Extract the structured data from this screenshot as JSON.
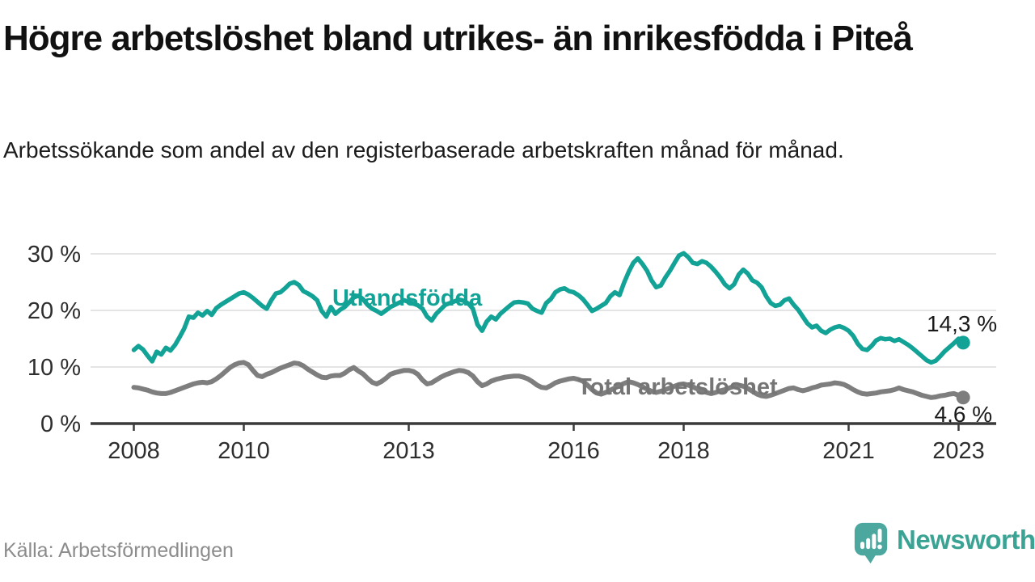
{
  "header": {
    "title": "Högre arbetslöshet bland utrikes- än inrikesfödda i Piteå",
    "subtitle": "Arbetssökande som andel av den registerbaserade arbetskraften månad för månad."
  },
  "footer": {
    "source": "Källa: Arbetsförmedlingen",
    "brand_name": "Newsworthy",
    "brand_icon": "speech-bubble-bar-chart-icon",
    "brand_icon_color": "#4ca89f",
    "brand_text_color": "#3ba394"
  },
  "colors": {
    "accent_teal": "#12a296",
    "line_gray": "#7e7e7e",
    "grid": "#dbdbdb",
    "axis": "#3a3a3a",
    "tick_text": "#2e2e2e",
    "value_label": "#1a1a1a"
  },
  "chart_data": {
    "type": "line",
    "title": "Högre arbetslöshet bland utrikes- än inrikesfödda i Piteå",
    "xlabel": "",
    "ylabel": "",
    "x_start_year": 2008,
    "x_step": "monthly",
    "xlim": [
      2007.3,
      2023.7
    ],
    "ylim": [
      0,
      32
    ],
    "grid": "horizontal",
    "legend_position": "inline-labels",
    "x_ticks": [
      {
        "label": "2008",
        "year": 2008
      },
      {
        "label": "2010",
        "year": 2010
      },
      {
        "label": "2013",
        "year": 2013
      },
      {
        "label": "2016",
        "year": 2016
      },
      {
        "label": "2018",
        "year": 2018
      },
      {
        "label": "2021",
        "year": 2021
      },
      {
        "label": "2023",
        "year": 2023
      }
    ],
    "y_ticks": [
      {
        "label": "0 %",
        "value": 0
      },
      {
        "label": "10 %",
        "value": 10
      },
      {
        "label": "20 %",
        "value": 20
      },
      {
        "label": "30 %",
        "value": 30
      }
    ],
    "series": [
      {
        "name": "Utlandsfödda",
        "color": "#12a296",
        "stroke_width": 5.5,
        "end_label": "14,3 %",
        "end_value": 14.3,
        "values": [
          13.0,
          13.7,
          13.1,
          12.0,
          11.0,
          12.7,
          12.2,
          13.4,
          12.9,
          13.9,
          15.3,
          16.8,
          18.9,
          18.7,
          19.6,
          19.1,
          19.9,
          19.2,
          20.4,
          21.0,
          21.5,
          22.0,
          22.5,
          23.0,
          23.2,
          22.8,
          22.2,
          21.5,
          20.8,
          20.3,
          21.8,
          23.0,
          23.2,
          23.9,
          24.7,
          25.0,
          24.5,
          23.4,
          23.0,
          22.5,
          21.8,
          19.9,
          18.9,
          20.6,
          19.4,
          20.1,
          20.6,
          21.4,
          22.3,
          22.6,
          22.0,
          21.0,
          20.3,
          19.9,
          19.4,
          20.0,
          20.6,
          21.0,
          21.4,
          21.8,
          21.5,
          21.2,
          20.9,
          20.3,
          18.9,
          18.2,
          19.4,
          20.2,
          21.0,
          21.3,
          21.6,
          21.9,
          21.7,
          21.2,
          20.3,
          17.5,
          16.4,
          18.0,
          18.9,
          18.4,
          19.4,
          20.1,
          20.8,
          21.4,
          21.5,
          21.4,
          21.2,
          20.3,
          19.9,
          19.6,
          21.3,
          22.0,
          23.2,
          23.7,
          23.9,
          23.4,
          23.2,
          22.7,
          22.0,
          21.0,
          19.9,
          20.3,
          20.8,
          21.3,
          22.5,
          23.2,
          22.7,
          24.9,
          26.8,
          28.4,
          29.2,
          28.2,
          27.0,
          25.3,
          24.1,
          24.4,
          25.8,
          27.0,
          28.4,
          29.7,
          30.1,
          29.4,
          28.4,
          28.2,
          28.7,
          28.4,
          27.7,
          26.8,
          25.8,
          24.6,
          23.9,
          24.6,
          26.3,
          27.2,
          26.5,
          25.3,
          24.9,
          24.1,
          22.5,
          21.3,
          20.8,
          21.0,
          21.8,
          22.1,
          21.0,
          20.1,
          18.9,
          17.7,
          17.0,
          17.3,
          16.4,
          16.0,
          16.6,
          17.0,
          17.2,
          16.9,
          16.4,
          15.5,
          14.1,
          13.2,
          13.0,
          13.7,
          14.7,
          15.1,
          14.9,
          15.0,
          14.6,
          14.9,
          14.4,
          13.9,
          13.3,
          12.6,
          11.9,
          11.2,
          10.8,
          11.1,
          11.9,
          12.8,
          13.5,
          14.2,
          15.0,
          14.3
        ]
      },
      {
        "name": "Total arbetslöshet",
        "color": "#7e7e7e",
        "stroke_width": 6,
        "end_label": "4,6 %",
        "end_value": 4.6,
        "values": [
          6.4,
          6.3,
          6.1,
          5.9,
          5.6,
          5.4,
          5.3,
          5.3,
          5.5,
          5.8,
          6.1,
          6.4,
          6.7,
          7.0,
          7.2,
          7.3,
          7.2,
          7.4,
          7.9,
          8.5,
          9.2,
          9.9,
          10.4,
          10.7,
          10.8,
          10.4,
          9.4,
          8.5,
          8.3,
          8.7,
          9.0,
          9.4,
          9.8,
          10.1,
          10.4,
          10.7,
          10.6,
          10.2,
          9.6,
          9.1,
          8.6,
          8.2,
          8.1,
          8.4,
          8.5,
          8.5,
          8.9,
          9.5,
          9.9,
          9.3,
          8.8,
          8.0,
          7.3,
          7.0,
          7.4,
          8.0,
          8.7,
          9.0,
          9.2,
          9.4,
          9.4,
          9.2,
          8.7,
          7.7,
          7.0,
          7.2,
          7.7,
          8.2,
          8.6,
          8.9,
          9.2,
          9.4,
          9.3,
          9.0,
          8.4,
          7.4,
          6.7,
          7.0,
          7.5,
          7.8,
          8.0,
          8.2,
          8.3,
          8.4,
          8.4,
          8.2,
          7.9,
          7.4,
          6.8,
          6.4,
          6.3,
          6.7,
          7.2,
          7.5,
          7.7,
          7.9,
          8.0,
          7.8,
          7.5,
          6.8,
          6.0,
          5.4,
          5.2,
          5.5,
          5.9,
          6.3,
          6.7,
          7.1,
          7.4,
          7.2,
          6.9,
          6.5,
          6.1,
          5.7,
          5.5,
          5.7,
          6.0,
          6.3,
          6.6,
          6.9,
          7.0,
          6.8,
          6.5,
          6.1,
          5.8,
          5.5,
          5.3,
          5.5,
          5.8,
          6.0,
          6.3,
          6.6,
          6.8,
          6.6,
          6.2,
          5.7,
          5.2,
          4.9,
          4.8,
          5.0,
          5.3,
          5.6,
          5.9,
          6.2,
          6.3,
          6.0,
          5.8,
          6.0,
          6.3,
          6.5,
          6.8,
          6.9,
          7.0,
          7.2,
          7.1,
          6.9,
          6.5,
          6.0,
          5.6,
          5.3,
          5.2,
          5.3,
          5.4,
          5.6,
          5.7,
          5.8,
          6.0,
          6.3,
          6.0,
          5.8,
          5.6,
          5.3,
          5.0,
          4.8,
          4.6,
          4.7,
          4.9,
          5.0,
          5.2,
          5.3,
          5.0,
          4.6
        ]
      }
    ]
  }
}
